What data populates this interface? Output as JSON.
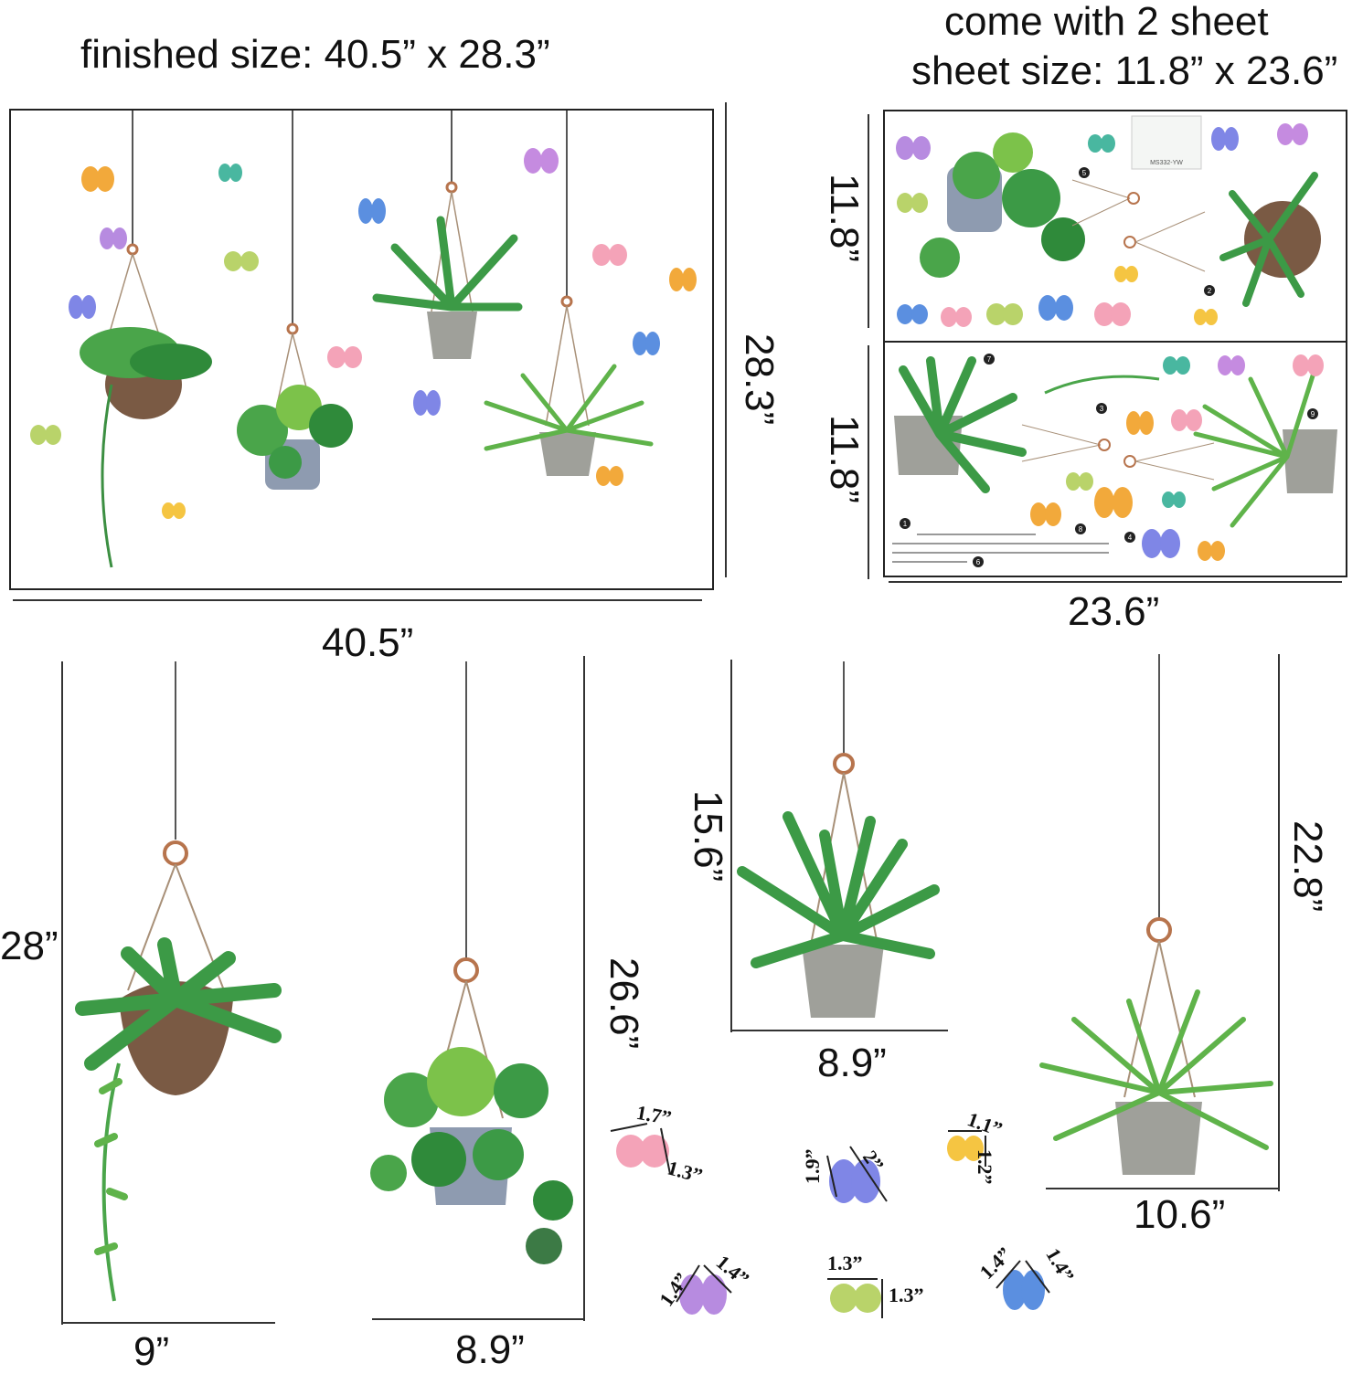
{
  "top": {
    "finished_size": "finished size: 40.5” x 28.3”",
    "sheets_line1": "come with 2 sheet",
    "sheets_line2": "sheet size: 11.8” x 23.6”"
  },
  "dims": {
    "finished_width": "40.5”",
    "finished_height": "28.3”",
    "sheet_height_1": "11.8”",
    "sheet_height_2": "11.8”",
    "sheet_width": "23.6”",
    "plant1_height": "28”",
    "plant1_width": "9”",
    "plant2_height": "26.6”",
    "plant2_width": "8.9”",
    "plant3_height": "15.6”",
    "plant3_width": "8.9”",
    "plant4_height": "22.8”",
    "plant4_width": "10.6”"
  },
  "butterflies": [
    {
      "a": "1.7”",
      "b": "1.3”",
      "color": "#f4a3b8"
    },
    {
      "a": "1.9”",
      "b": "2”",
      "color": "#7f86e6"
    },
    {
      "a": "1.1”",
      "b": "1.2”",
      "color": "#f5c542"
    },
    {
      "a": "1.4”",
      "b": "1.4”",
      "color": "#b78be0"
    },
    {
      "a": "1.3”",
      "b": "1.3”",
      "color": "#b9d36a"
    },
    {
      "a": "1.4”",
      "b": "1.4”",
      "color": "#5b8fe0"
    }
  ],
  "sheet_numbers": [
    "1",
    "2",
    "3",
    "4",
    "5",
    "6",
    "7",
    "8",
    "9"
  ],
  "sheet_code": "MS332-YW",
  "colors": {
    "leaf_dark": "#2f8a3a",
    "leaf_light": "#7cc24a",
    "pot_brown": "#7a5a44",
    "pot_grey": "#9fa09a",
    "pot_blue": "#8e9bb0"
  }
}
